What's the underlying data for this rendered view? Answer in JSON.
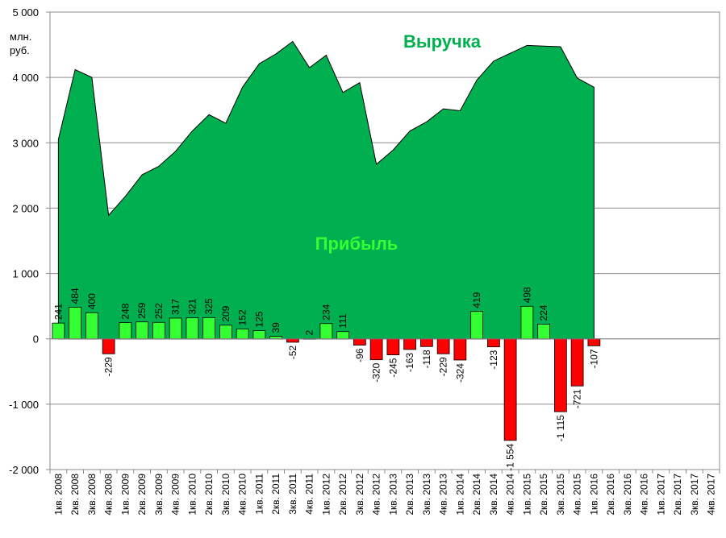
{
  "chart_data": {
    "type": "bar",
    "title": "",
    "unit_label": [
      "млн.",
      "руб."
    ],
    "ylim": [
      -2000,
      5000
    ],
    "y_ticks": [
      -2000,
      -1000,
      0,
      1000,
      2000,
      3000,
      4000,
      5000
    ],
    "y_tick_labels": [
      "-2 000",
      "-1 000",
      "0",
      "1 000",
      "2 000",
      "3 000",
      "4 000",
      "5 000"
    ],
    "grid": true,
    "categories": [
      "1кв. 2008",
      "2кв. 2008",
      "3кв. 2008",
      "4кв. 2008",
      "1кв. 2009",
      "2кв. 2009",
      "3кв. 2009",
      "4кв. 2009",
      "1кв. 2010",
      "2кв. 2010",
      "3кв. 2010",
      "4кв. 2010",
      "1кв. 2011",
      "2кв. 2011",
      "3кв. 2011",
      "4кв. 2011",
      "1кв. 2012",
      "2кв. 2012",
      "3кв. 2012",
      "4кв. 2012",
      "1кв. 2013",
      "2кв. 2013",
      "3кв. 2013",
      "4кв. 2013",
      "1кв. 2014",
      "2кв. 2014",
      "3кв. 2014",
      "4кв. 2014",
      "1кв. 2015",
      "2кв. 2015",
      "3кв. 2015",
      "4кв. 2015",
      "1кв. 2016",
      "2кв. 2016",
      "3кв. 2016",
      "4кв. 2016",
      "1кв. 2017",
      "2кв. 2017",
      "3кв. 2017",
      "4кв. 2017"
    ],
    "series": [
      {
        "name": "Выручка",
        "type": "area",
        "color": "#00b050",
        "values": [
          3050,
          4120,
          4000,
          1890,
          2180,
          2510,
          2640,
          2870,
          3180,
          3430,
          3300,
          3850,
          4210,
          4360,
          4550,
          4150,
          4340,
          3770,
          3920,
          2670,
          2890,
          3180,
          3320,
          3520,
          3490,
          3960,
          4250,
          4370,
          4490,
          4480,
          4470,
          3990,
          3850,
          null,
          null,
          null,
          null,
          null,
          null,
          null
        ]
      },
      {
        "name": "Прибыль",
        "type": "bar",
        "color": "#33ff33",
        "values": [
          241,
          484,
          400,
          -229,
          248,
          259,
          252,
          317,
          321,
          325,
          209,
          152,
          125,
          39,
          -52,
          2,
          234,
          111,
          -96,
          -320,
          -245,
          -163,
          -118,
          -229,
          -324,
          419,
          -123,
          -1554,
          498,
          224,
          -1115,
          -721,
          -107,
          null,
          null,
          null,
          null,
          null,
          null,
          null
        ],
        "labels": [
          "241",
          "484",
          "400",
          "-229",
          "248",
          "259",
          "252",
          "317",
          "321",
          "325",
          "209",
          "152",
          "125",
          "39",
          "-52",
          "2",
          "234",
          "111",
          "-96",
          "-320",
          "-245",
          "-163",
          "-118",
          "-229",
          "-324",
          "419",
          "-123",
          "-1 554",
          "498",
          "224",
          "-1 115",
          "-721",
          "-107",
          "",
          "",
          "",
          "",
          "",
          "",
          ""
        ]
      }
    ],
    "colors": {
      "positive_bar": "#33ff33",
      "negative_bar": "#ff0000",
      "area_fill": "#00b050",
      "revenue_label": "#00b050",
      "profit_label": "#33ff33"
    }
  }
}
